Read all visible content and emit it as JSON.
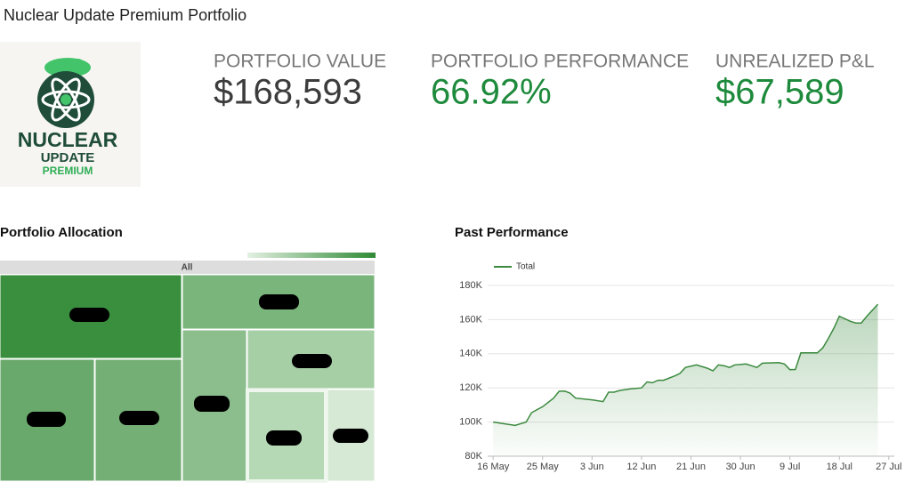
{
  "header": {
    "title": "Nuclear Update Premium Portfolio"
  },
  "logo": {
    "lines": [
      "NUCLEAR",
      "UPDATE",
      "PREMIUM"
    ]
  },
  "metrics": [
    {
      "label": "PORTFOLIO VALUE",
      "value": "$168,593",
      "color": "#3c3c3c"
    },
    {
      "label": "PORTFOLIO PERFORMANCE",
      "value": "66.92%",
      "color": "#1e8a3c"
    },
    {
      "label": "UNREALIZED P&L",
      "value": "$67,589",
      "color": "#1e8a3c"
    }
  ],
  "allocation": {
    "title": "Portfolio Allocation",
    "root": "All"
  },
  "chart_data": {
    "type": "line",
    "title": "Past Performance",
    "x": [
      "16 May",
      "20 May",
      "22 May",
      "23 May",
      "25 May",
      "27 May",
      "28 May",
      "29 May",
      "30 May",
      "31 May",
      "3 Jun",
      "5 Jun",
      "6 Jun",
      "7 Jun",
      "8 Jun",
      "10 Jun",
      "12 Jun",
      "13 Jun",
      "14 Jun",
      "15 Jun",
      "16 Jun",
      "18 Jun",
      "19 Jun",
      "20 Jun",
      "22 Jun",
      "24 Jun",
      "25 Jun",
      "26 Jun",
      "27 Jun",
      "28 Jun",
      "29 Jun",
      "1 Jul",
      "2 Jul",
      "3 Jul",
      "4 Jul",
      "7 Jul",
      "8 Jul",
      "9 Jul",
      "10 Jul",
      "11 Jul",
      "14 Jul",
      "15 Jul",
      "16 Jul",
      "17 Jul",
      "18 Jul",
      "20 Jul",
      "21 Jul",
      "22 Jul",
      "23 Jul",
      "25 Jul"
    ],
    "series": [
      {
        "name": "Total",
        "color": "#3b8a3e",
        "values": [
          100000,
          98000,
          100000,
          105500,
          109000,
          114000,
          118000,
          118200,
          117000,
          114000,
          113000,
          112000,
          117500,
          117500,
          118500,
          119500,
          120000,
          123500,
          123000,
          124500,
          124500,
          127000,
          128500,
          132000,
          133500,
          131500,
          130000,
          133500,
          133000,
          132000,
          133500,
          134000,
          133000,
          132000,
          134500,
          134800,
          134000,
          130700,
          130800,
          140500,
          140500,
          143500,
          149000,
          155000,
          162000,
          159000,
          158000,
          158000,
          162000,
          169000
        ]
      }
    ],
    "xlim": [
      "15 May",
      "28 Jul"
    ],
    "xticks": [
      "16 May",
      "25 May",
      "3 Jun",
      "12 Jun",
      "21 Jun",
      "30 Jun",
      "9 Jul",
      "18 Jul",
      "27 Jul"
    ],
    "ylim": [
      80000,
      180000
    ],
    "yticks": [
      {
        "value": 80000,
        "label": "80K"
      },
      {
        "value": 100000,
        "label": "100K"
      },
      {
        "value": 120000,
        "label": "120K"
      },
      {
        "value": 140000,
        "label": "140K"
      },
      {
        "value": 160000,
        "label": "160K"
      },
      {
        "value": 180000,
        "label": "180K"
      }
    ],
    "grid": true,
    "legend": "top-left"
  }
}
